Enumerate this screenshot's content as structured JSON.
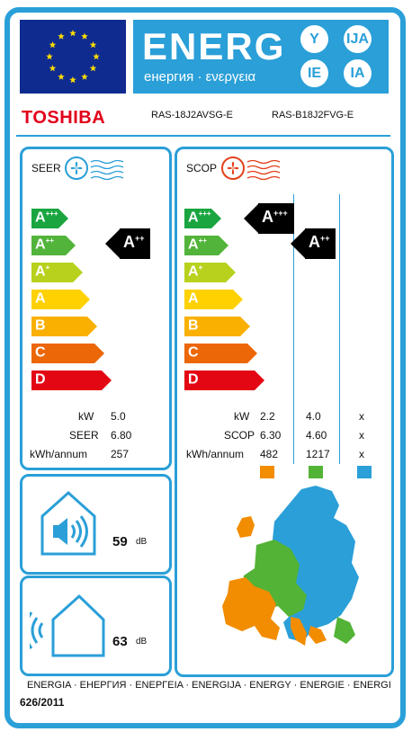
{
  "header": {
    "energy_word": "ENERG",
    "energy_sub": "енергия · ενεργεια",
    "lang_suffixes": [
      "Y",
      "IJA",
      "IE",
      "IA"
    ],
    "eu_flag": "eu-flag-icon"
  },
  "brand": {
    "name": "TOSHIBA",
    "color": "#e2001a"
  },
  "models": {
    "indoor": "RAS-18J2AVSG-E",
    "outdoor": "RAS-B18J2FVG-E"
  },
  "cooling": {
    "title": "SEER",
    "icon": "fan-cold-icon",
    "scale": [
      {
        "class": "A",
        "plus": "+++",
        "color": "#1aa540"
      },
      {
        "class": "A",
        "plus": "++",
        "color": "#52b43a"
      },
      {
        "class": "A",
        "plus": "+",
        "color": "#b8d11d"
      },
      {
        "class": "A",
        "plus": "",
        "color": "#ffd100"
      },
      {
        "class": "B",
        "plus": "",
        "color": "#f9b000"
      },
      {
        "class": "C",
        "plus": "",
        "color": "#ec6707"
      },
      {
        "class": "D",
        "plus": "",
        "color": "#e30613"
      }
    ],
    "rating": {
      "class": "A",
      "plus": "++"
    },
    "rows": [
      {
        "label": "kW",
        "value": "5.0"
      },
      {
        "label": "SEER",
        "value": "6.80"
      },
      {
        "label": "kWh/annum",
        "value": "257"
      }
    ]
  },
  "heating": {
    "title": "SCOP",
    "icon": "fan-heat-icon",
    "ratings": [
      {
        "class": "A",
        "plus": "+++"
      },
      {
        "class": "A",
        "plus": "++"
      }
    ],
    "labels": [
      "kW",
      "SCOP",
      "kWh/annum"
    ],
    "columns": [
      {
        "values": [
          "2.2",
          "6.30",
          "482"
        ],
        "color": "#f28c00"
      },
      {
        "values": [
          "4.0",
          "4.60",
          "1217"
        ],
        "color": "#53b336"
      },
      {
        "values": [
          "x",
          "x",
          "x"
        ],
        "color": "#2a9fd8"
      }
    ],
    "map": "europe-climate-map-icon"
  },
  "noise_indoor": {
    "value": "59",
    "unit": "dB",
    "icon": "indoor-speaker-house-icon"
  },
  "noise_outdoor": {
    "value": "63",
    "unit": "dB",
    "icon": "outdoor-sound-house-icon"
  },
  "footer": {
    "energia_line": "ENERGIA · ЕНЕРГИЯ · ΕΝΕΡΓΕΙΑ · ENERGIJA · ENERGY · ENERGIE · ENERGI",
    "regulation": "626/2011"
  }
}
